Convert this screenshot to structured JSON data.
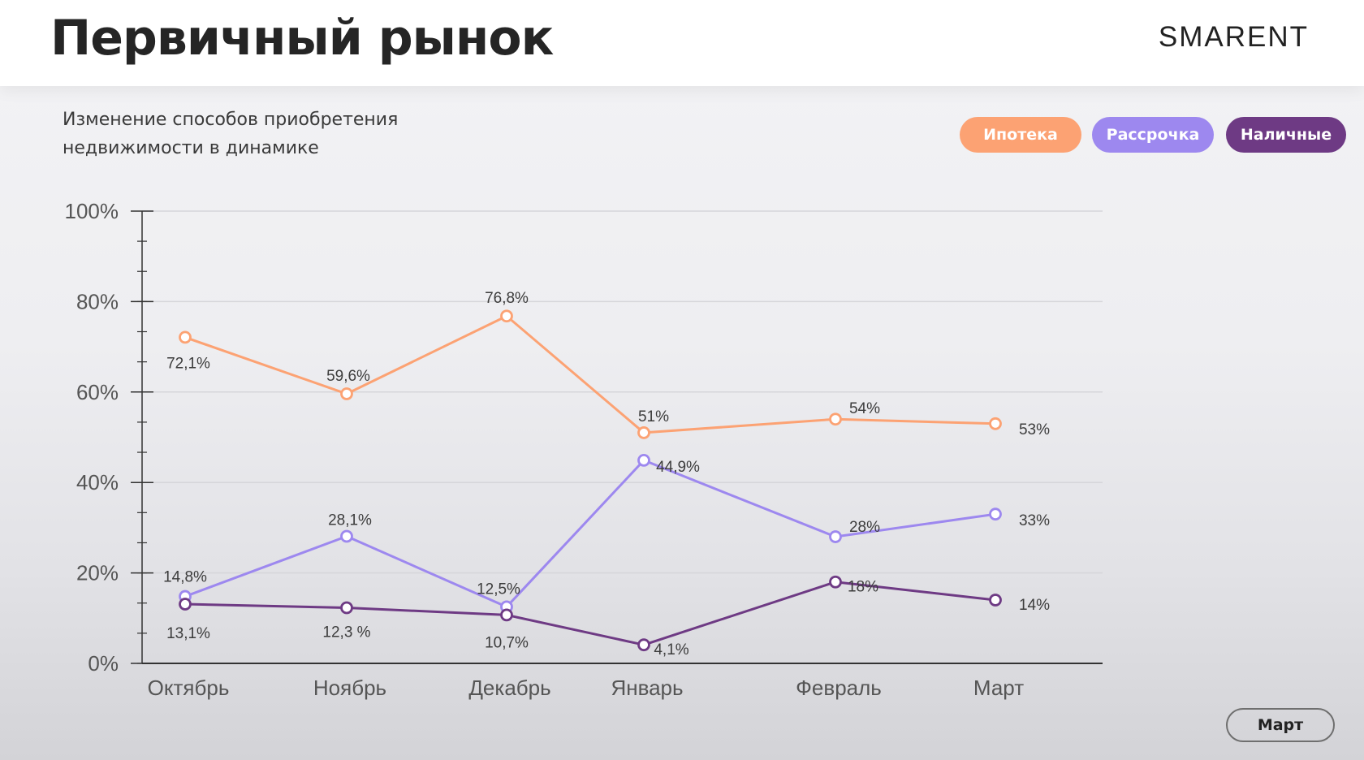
{
  "header": {
    "title": "Первичный рынок",
    "logo": "SMARENT"
  },
  "colors": {
    "mortgage": "#fca273",
    "installment": "#9d88ef",
    "cash": "#6e3a84",
    "grid": "#d6d6da",
    "axis": "#333333"
  },
  "chart_data": {
    "type": "line",
    "title": "Изменение способов приобретения недвижимости в динамике",
    "title_lines": [
      "Изменение способов приобретения",
      "недвижимости в динамике"
    ],
    "xlabel": "",
    "ylabel": "",
    "categories": [
      "Октябрь",
      "Ноябрь",
      "Декабрь",
      "Январь",
      "Февраль",
      "Март"
    ],
    "ylim": [
      0,
      100
    ],
    "yticks": [
      "0%",
      "20%",
      "40%",
      "60%",
      "80%",
      "100%"
    ],
    "grid": true,
    "legend": "top-right",
    "series": [
      {
        "name": "Ипотека",
        "color": "#fca273",
        "values": [
          72.1,
          59.6,
          76.8,
          51,
          54,
          53
        ],
        "labels": [
          "72,1%",
          "59,6%",
          "76,8%",
          "51%",
          "54%",
          "53%"
        ]
      },
      {
        "name": "Рассрочка",
        "color": "#9d88ef",
        "values": [
          14.8,
          28.1,
          12.5,
          44.9,
          28,
          33
        ],
        "labels": [
          "14,8%",
          "28,1%",
          "12,5%",
          "44,9%",
          "28%",
          "33%"
        ]
      },
      {
        "name": "Наличные",
        "color": "#6e3a84",
        "values": [
          13.1,
          12.3,
          10.7,
          4.1,
          18,
          14
        ],
        "labels": [
          "13,1%",
          "12,3 %",
          "10,7%",
          "4,1%",
          "18%",
          "14%"
        ]
      }
    ]
  },
  "controls": {
    "month_button": "Март"
  }
}
